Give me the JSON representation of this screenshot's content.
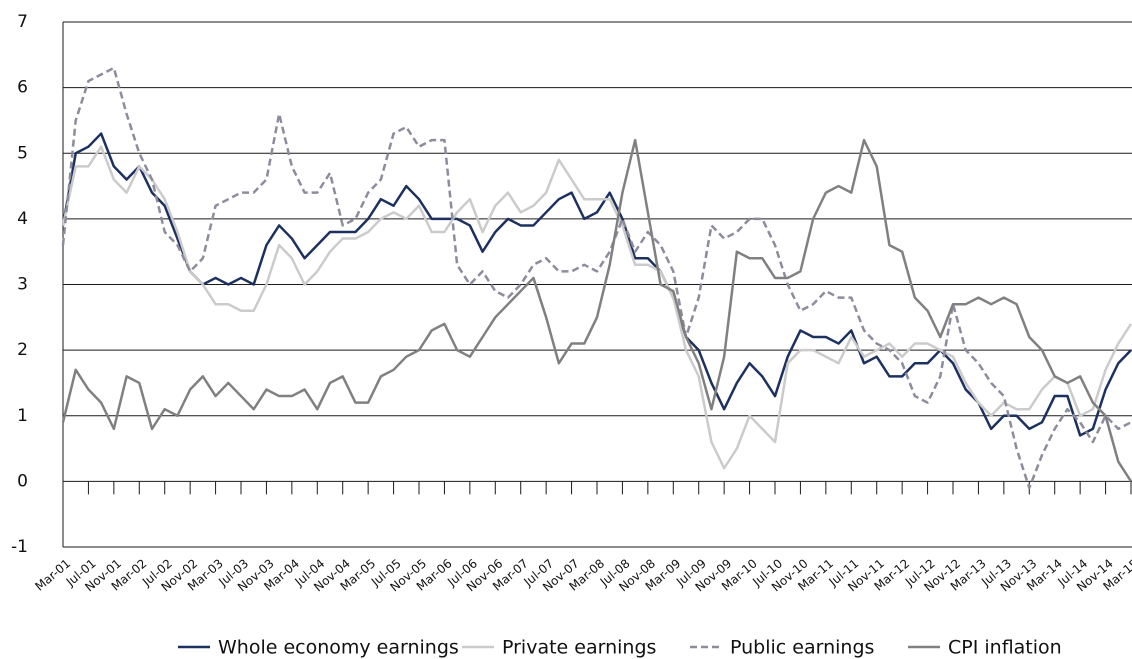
{
  "chart_data": {
    "type": "line",
    "categories": [
      "Mar-01",
      null,
      "Jul-01",
      null,
      "Nov-01",
      null,
      "Mar-02",
      null,
      "Jul-02",
      null,
      "Nov-02",
      null,
      "Mar-03",
      null,
      "Jul-03",
      null,
      "Nov-03",
      null,
      "Mar-04",
      null,
      "Jul-04",
      null,
      "Nov-04",
      null,
      "Mar-05",
      null,
      "Jul-05",
      null,
      "Nov-05",
      null,
      "Mar-06",
      null,
      "Jul-06",
      null,
      "Nov-06",
      null,
      "Mar-07",
      null,
      "Jul-07",
      null,
      "Nov-07",
      null,
      "Mar-08",
      null,
      "Jul-08",
      null,
      "Nov-08",
      null,
      "Mar-09",
      null,
      "Jul-09",
      null,
      "Nov-09",
      null,
      "Mar-10",
      null,
      "Jul-10",
      null,
      "Nov-10",
      null,
      "Mar-11",
      null,
      "Jul-11",
      null,
      "Nov-11",
      null,
      "Mar-12",
      null,
      "Jul-12",
      null,
      "Nov-12",
      null,
      "Mar-13",
      null,
      "Jul-13",
      null,
      "Nov-13",
      null,
      "Mar-14",
      null,
      "Jul-14",
      null,
      "Nov-14",
      null,
      "Mar-15"
    ],
    "series": [
      {
        "name": "Whole economy earnings",
        "color": "#1c3160",
        "dashed": false,
        "values": [
          3.9,
          5.0,
          5.1,
          5.3,
          4.8,
          4.6,
          4.8,
          4.4,
          4.2,
          3.7,
          3.2,
          3.0,
          3.1,
          3.0,
          3.1,
          3.0,
          3.6,
          3.9,
          3.7,
          3.4,
          3.6,
          3.8,
          3.8,
          3.8,
          4.0,
          4.3,
          4.2,
          4.5,
          4.3,
          4.0,
          4.0,
          4.0,
          3.9,
          3.5,
          3.8,
          4.0,
          3.9,
          3.9,
          4.1,
          4.3,
          4.4,
          4.0,
          4.1,
          4.4,
          4.0,
          3.4,
          3.4,
          3.2,
          2.8,
          2.2,
          2.0,
          1.5,
          1.1,
          1.5,
          1.8,
          1.6,
          1.3,
          1.9,
          2.3,
          2.2,
          2.2,
          2.1,
          2.3,
          1.8,
          1.9,
          1.6,
          1.6,
          1.8,
          1.8,
          2.0,
          1.8,
          1.4,
          1.2,
          0.8,
          1.0,
          1.0,
          0.8,
          0.9,
          1.3,
          1.3,
          0.7,
          0.8,
          1.4,
          1.8,
          2.0
        ]
      },
      {
        "name": "Private earnings",
        "color": "#cbcbcb",
        "dashed": false,
        "values": [
          3.9,
          4.8,
          4.8,
          5.1,
          4.6,
          4.4,
          4.8,
          4.6,
          4.3,
          3.8,
          3.2,
          3.0,
          2.7,
          2.7,
          2.6,
          2.6,
          3.0,
          3.6,
          3.4,
          3.0,
          3.2,
          3.5,
          3.7,
          3.7,
          3.8,
          4.0,
          4.1,
          4.0,
          4.2,
          3.8,
          3.8,
          4.1,
          4.3,
          3.8,
          4.2,
          4.4,
          4.1,
          4.2,
          4.4,
          4.9,
          4.6,
          4.3,
          4.3,
          4.3,
          3.9,
          3.3,
          3.3,
          3.2,
          2.8,
          2.0,
          1.6,
          0.6,
          0.2,
          0.5,
          1.0,
          0.8,
          0.6,
          1.8,
          2.0,
          2.0,
          1.9,
          1.8,
          2.2,
          1.9,
          2.0,
          2.1,
          1.9,
          2.1,
          2.1,
          2.0,
          1.9,
          1.5,
          1.2,
          1.0,
          1.2,
          1.1,
          1.1,
          1.4,
          1.6,
          1.5,
          1.0,
          1.1,
          1.7,
          2.1,
          2.4
        ]
      },
      {
        "name": "Public earnings",
        "color": "#8c8c9c",
        "dashed": true,
        "values": [
          3.6,
          5.5,
          6.1,
          6.2,
          6.3,
          5.6,
          5.0,
          4.6,
          3.8,
          3.6,
          3.2,
          3.4,
          4.2,
          4.3,
          4.4,
          4.4,
          4.6,
          5.6,
          4.8,
          4.4,
          4.4,
          4.7,
          3.9,
          4.0,
          4.4,
          4.6,
          5.3,
          5.4,
          5.1,
          5.2,
          5.2,
          3.3,
          3.0,
          3.2,
          2.9,
          2.8,
          3.0,
          3.3,
          3.4,
          3.2,
          3.2,
          3.3,
          3.2,
          3.5,
          4.0,
          3.5,
          3.8,
          3.6,
          3.2,
          2.2,
          2.8,
          3.9,
          3.7,
          3.8,
          4.0,
          4.0,
          3.6,
          3.0,
          2.6,
          2.7,
          2.9,
          2.8,
          2.8,
          2.3,
          2.1,
          2.0,
          1.8,
          1.3,
          1.2,
          1.6,
          2.7,
          2.0,
          1.8,
          1.5,
          1.3,
          0.5,
          -0.1,
          0.4,
          0.8,
          1.1,
          0.9,
          0.6,
          1.0,
          0.8,
          0.9
        ]
      },
      {
        "name": "CPI inflation",
        "color": "#808080",
        "dashed": false,
        "values": [
          0.9,
          1.7,
          1.4,
          1.2,
          0.8,
          1.6,
          1.5,
          0.8,
          1.1,
          1.0,
          1.4,
          1.6,
          1.3,
          1.5,
          1.3,
          1.1,
          1.4,
          1.3,
          1.3,
          1.4,
          1.1,
          1.5,
          1.6,
          1.2,
          1.2,
          1.6,
          1.7,
          1.9,
          2.0,
          2.3,
          2.4,
          2.0,
          1.9,
          2.2,
          2.5,
          2.7,
          2.9,
          3.1,
          2.5,
          1.8,
          2.1,
          2.1,
          2.5,
          3.3,
          4.4,
          5.2,
          4.1,
          3.0,
          2.9,
          2.2,
          1.8,
          1.1,
          1.9,
          3.5,
          3.4,
          3.4,
          3.1,
          3.1,
          3.2,
          4.0,
          4.4,
          4.5,
          4.4,
          5.2,
          4.8,
          3.6,
          3.5,
          2.8,
          2.6,
          2.2,
          2.7,
          2.7,
          2.8,
          2.7,
          2.8,
          2.7,
          2.2,
          2.0,
          1.6,
          1.5,
          1.6,
          1.2,
          1.0,
          0.3,
          0.0
        ]
      }
    ],
    "ylim": [
      -1,
      7
    ],
    "yticks": [
      -1,
      0,
      1,
      2,
      3,
      4,
      5,
      6,
      7
    ],
    "grid": true
  }
}
